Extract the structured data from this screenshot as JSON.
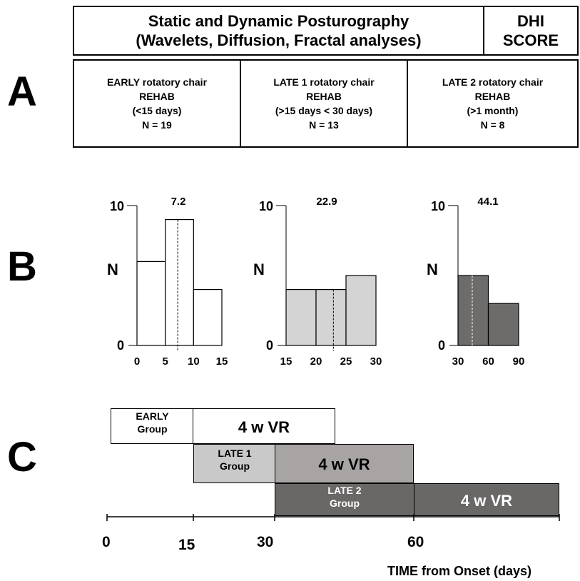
{
  "panels": {
    "a": "A",
    "b": "B",
    "c": "C"
  },
  "header": {
    "posturography": [
      "Static and Dynamic Posturography",
      "(Wavelets, Diffusion, Fractal analyses)"
    ],
    "dhi": [
      "DHI",
      "SCORE"
    ]
  },
  "groups": [
    {
      "lines": [
        "EARLY rotatory chair",
        "REHAB",
        "(<15 days)",
        "N = 19"
      ]
    },
    {
      "lines": [
        "LATE 1 rotatory chair",
        "REHAB",
        "(>15 days < 30 days)",
        "N = 13"
      ]
    },
    {
      "lines": [
        "LATE 2 rotatory chair",
        "REHAB",
        "(>1 month)",
        "N = 8"
      ]
    }
  ],
  "chart_data": [
    {
      "type": "bar",
      "categories": [
        "0-5",
        "5-10",
        "10-15"
      ],
      "x_ticks": [
        "0",
        "5",
        "10",
        "15"
      ],
      "values": [
        6,
        9,
        4
      ],
      "mean": 7.2,
      "mean_label": "7.2",
      "ylabel": "N",
      "y_ticks": [
        "0",
        "10"
      ],
      "ylim": [
        0,
        10
      ],
      "color": "#ffffff"
    },
    {
      "type": "bar",
      "categories": [
        "15-20",
        "20-25",
        "25-30"
      ],
      "x_ticks": [
        "15",
        "20",
        "25",
        "30"
      ],
      "values": [
        4,
        4,
        5
      ],
      "mean": 22.9,
      "mean_label": "22.9",
      "ylabel": "N",
      "y_ticks": [
        "0",
        "10"
      ],
      "ylim": [
        0,
        10
      ],
      "color": "#d4d4d4"
    },
    {
      "type": "bar",
      "categories": [
        "30-60",
        "60-90"
      ],
      "x_ticks": [
        "30",
        "60",
        "90"
      ],
      "values": [
        5,
        3
      ],
      "mean": 44.1,
      "mean_label": "44.1",
      "ylabel": "N",
      "y_ticks": [
        "0",
        "10"
      ],
      "ylim": [
        0,
        10
      ],
      "color": "#6e6b6b"
    }
  ],
  "timeline": {
    "early_group": [
      "EARLY",
      "Group"
    ],
    "late1_group": [
      "LATE 1",
      "Group"
    ],
    "late2_group": [
      "LATE 2",
      "Group"
    ],
    "vr_label": "4 w VR",
    "ticks": [
      "0",
      "15",
      "30",
      "60"
    ],
    "axis_label": "TIME from Onset (days)",
    "colors": {
      "early": "#ffffff",
      "late1": "#c9c9c9",
      "late1_vr": "#a8a4a4",
      "late2": "#6a6767"
    }
  }
}
